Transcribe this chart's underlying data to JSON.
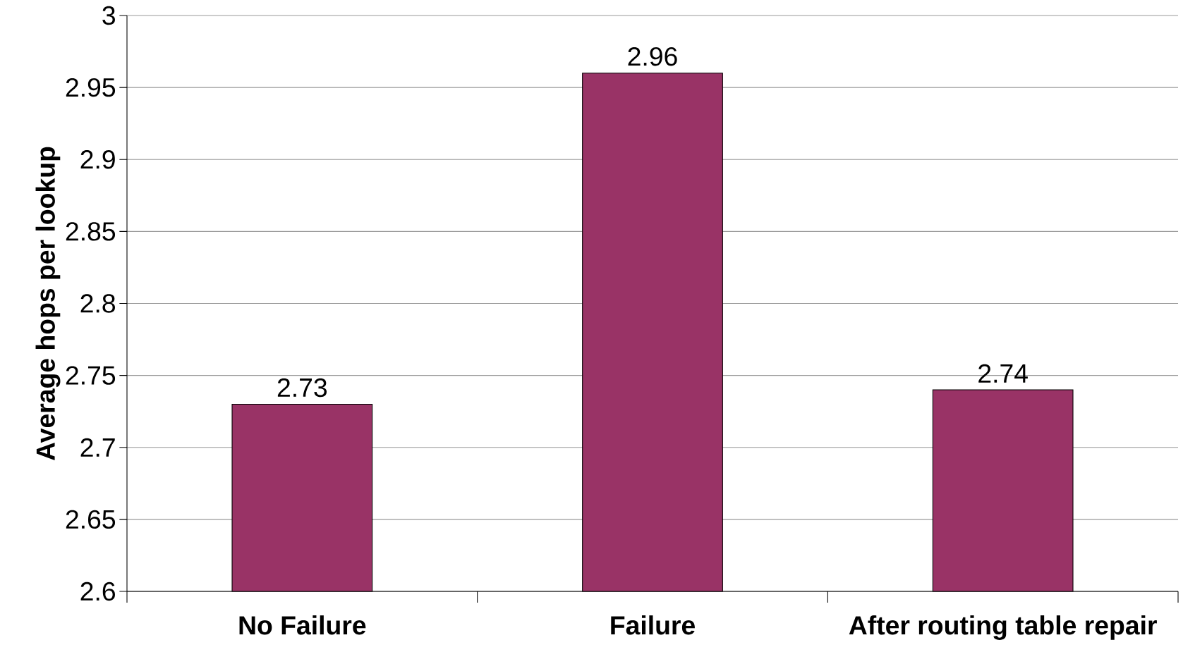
{
  "chart_data": {
    "type": "bar",
    "ylabel": "Average hops per lookup",
    "categories": [
      "No Failure",
      "Failure",
      "After routing table repair"
    ],
    "values": [
      2.73,
      2.96,
      2.74
    ],
    "color": "#993366",
    "ylim": [
      2.6,
      3
    ],
    "yticks": [
      2.6,
      2.65,
      2.7,
      2.75,
      2.8,
      2.85,
      2.9,
      2.95,
      3
    ],
    "grid": "y",
    "data_labels": true
  }
}
